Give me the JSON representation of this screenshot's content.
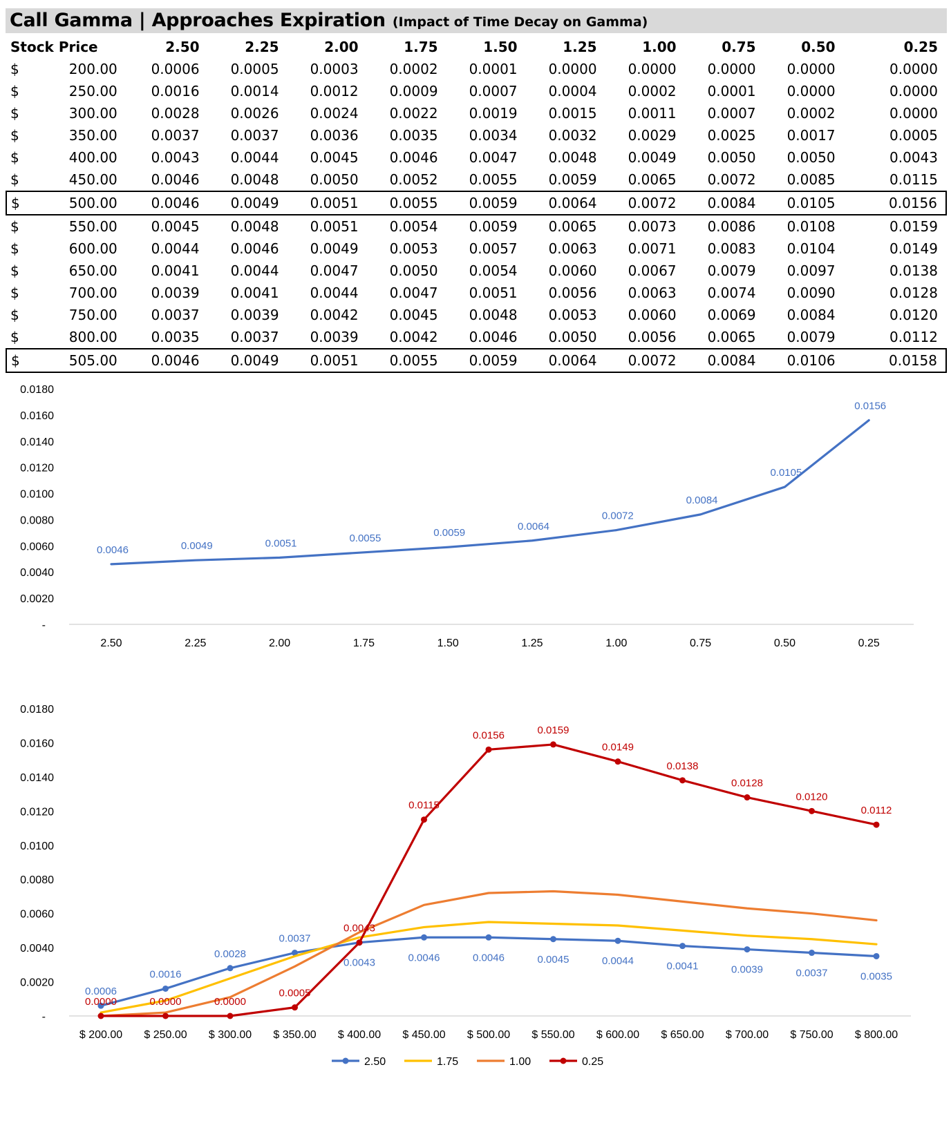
{
  "title": "Call Gamma | Approaches Expiration",
  "subtitle": "(Impact of Time Decay on Gamma)",
  "table": {
    "header_first": "Stock Price",
    "currency": "$",
    "columns": [
      "2.50",
      "2.25",
      "2.00",
      "1.75",
      "1.50",
      "1.25",
      "1.00",
      "0.75",
      "0.50",
      "0.25"
    ],
    "rows": [
      {
        "price": "200.00",
        "values": [
          "0.0006",
          "0.0005",
          "0.0003",
          "0.0002",
          "0.0001",
          "0.0000",
          "0.0000",
          "0.0000",
          "0.0000",
          "0.0000"
        ],
        "highlight": false
      },
      {
        "price": "250.00",
        "values": [
          "0.0016",
          "0.0014",
          "0.0012",
          "0.0009",
          "0.0007",
          "0.0004",
          "0.0002",
          "0.0001",
          "0.0000",
          "0.0000"
        ],
        "highlight": false
      },
      {
        "price": "300.00",
        "values": [
          "0.0028",
          "0.0026",
          "0.0024",
          "0.0022",
          "0.0019",
          "0.0015",
          "0.0011",
          "0.0007",
          "0.0002",
          "0.0000"
        ],
        "highlight": false
      },
      {
        "price": "350.00",
        "values": [
          "0.0037",
          "0.0037",
          "0.0036",
          "0.0035",
          "0.0034",
          "0.0032",
          "0.0029",
          "0.0025",
          "0.0017",
          "0.0005"
        ],
        "highlight": false
      },
      {
        "price": "400.00",
        "values": [
          "0.0043",
          "0.0044",
          "0.0045",
          "0.0046",
          "0.0047",
          "0.0048",
          "0.0049",
          "0.0050",
          "0.0050",
          "0.0043"
        ],
        "highlight": false
      },
      {
        "price": "450.00",
        "values": [
          "0.0046",
          "0.0048",
          "0.0050",
          "0.0052",
          "0.0055",
          "0.0059",
          "0.0065",
          "0.0072",
          "0.0085",
          "0.0115"
        ],
        "highlight": false
      },
      {
        "price": "500.00",
        "values": [
          "0.0046",
          "0.0049",
          "0.0051",
          "0.0055",
          "0.0059",
          "0.0064",
          "0.0072",
          "0.0084",
          "0.0105",
          "0.0156"
        ],
        "highlight": true
      },
      {
        "price": "550.00",
        "values": [
          "0.0045",
          "0.0048",
          "0.0051",
          "0.0054",
          "0.0059",
          "0.0065",
          "0.0073",
          "0.0086",
          "0.0108",
          "0.0159"
        ],
        "highlight": false
      },
      {
        "price": "600.00",
        "values": [
          "0.0044",
          "0.0046",
          "0.0049",
          "0.0053",
          "0.0057",
          "0.0063",
          "0.0071",
          "0.0083",
          "0.0104",
          "0.0149"
        ],
        "highlight": false
      },
      {
        "price": "650.00",
        "values": [
          "0.0041",
          "0.0044",
          "0.0047",
          "0.0050",
          "0.0054",
          "0.0060",
          "0.0067",
          "0.0079",
          "0.0097",
          "0.0138"
        ],
        "highlight": false
      },
      {
        "price": "700.00",
        "values": [
          "0.0039",
          "0.0041",
          "0.0044",
          "0.0047",
          "0.0051",
          "0.0056",
          "0.0063",
          "0.0074",
          "0.0090",
          "0.0128"
        ],
        "highlight": false
      },
      {
        "price": "750.00",
        "values": [
          "0.0037",
          "0.0039",
          "0.0042",
          "0.0045",
          "0.0048",
          "0.0053",
          "0.0060",
          "0.0069",
          "0.0084",
          "0.0120"
        ],
        "highlight": false
      },
      {
        "price": "800.00",
        "values": [
          "0.0035",
          "0.0037",
          "0.0039",
          "0.0042",
          "0.0046",
          "0.0050",
          "0.0056",
          "0.0065",
          "0.0079",
          "0.0112"
        ],
        "highlight": false
      },
      {
        "price": "505.00",
        "values": [
          "0.0046",
          "0.0049",
          "0.0051",
          "0.0055",
          "0.0059",
          "0.0064",
          "0.0072",
          "0.0084",
          "0.0106",
          "0.0158"
        ],
        "highlight": true
      }
    ]
  },
  "chart_data": [
    {
      "type": "line",
      "categories": [
        "2.50",
        "2.25",
        "2.00",
        "1.75",
        "1.50",
        "1.25",
        "1.00",
        "0.75",
        "0.50",
        "0.25"
      ],
      "series": [
        {
          "values": [
            0.0046,
            0.0049,
            0.0051,
            0.0055,
            0.0059,
            0.0064,
            0.0072,
            0.0084,
            0.0105,
            0.0156
          ],
          "color": "#4472c4",
          "labels": [
            "0.0046",
            "0.0049",
            "0.0051",
            "0.0055",
            "0.0059",
            "0.0064",
            "0.0072",
            "0.0084",
            "0.0105",
            "0.0156"
          ]
        }
      ],
      "ylim": [
        0,
        0.018
      ],
      "yticks": [
        "-",
        "0.0020",
        "0.0040",
        "0.0060",
        "0.0080",
        "0.0100",
        "0.0120",
        "0.0140",
        "0.0160",
        "0.0180"
      ],
      "grid": false,
      "markers": true
    },
    {
      "type": "line",
      "categories": [
        "$ 200.00",
        "$ 250.00",
        "$ 300.00",
        "$ 350.00",
        "$ 400.00",
        "$ 450.00",
        "$ 500.00",
        "$ 550.00",
        "$ 600.00",
        "$ 650.00",
        "$ 700.00",
        "$ 750.00",
        "$ 800.00"
      ],
      "series": [
        {
          "name": "2.50",
          "color": "#4472c4",
          "markers": true,
          "values": [
            0.0006,
            0.0016,
            0.0028,
            0.0037,
            0.0043,
            0.0046,
            0.0046,
            0.0045,
            0.0044,
            0.0041,
            0.0039,
            0.0037,
            0.0035
          ],
          "labels": [
            "0.0006",
            "0.0016",
            "0.0028",
            "0.0037",
            "0.0043",
            "0.0046",
            "0.0046",
            "0.0045",
            "0.0044",
            "0.0041",
            "0.0039",
            "0.0037",
            "0.0035"
          ],
          "label_below": [
            false,
            false,
            false,
            false,
            true,
            true,
            true,
            true,
            true,
            true,
            true,
            true,
            true
          ]
        },
        {
          "name": "1.75",
          "color": "#ffc000",
          "markers": false,
          "values": [
            0.0002,
            0.0009,
            0.0022,
            0.0035,
            0.0046,
            0.0052,
            0.0055,
            0.0054,
            0.0053,
            0.005,
            0.0047,
            0.0045,
            0.0042
          ]
        },
        {
          "name": "1.00",
          "color": "#ed7d31",
          "markers": false,
          "values": [
            0.0,
            0.0002,
            0.0011,
            0.0029,
            0.0049,
            0.0065,
            0.0072,
            0.0073,
            0.0071,
            0.0067,
            0.0063,
            0.006,
            0.0056
          ]
        },
        {
          "name": "0.25",
          "color": "#c00000",
          "markers": true,
          "values": [
            0.0,
            0.0,
            0.0,
            0.0005,
            0.0043,
            0.0115,
            0.0156,
            0.0159,
            0.0149,
            0.0138,
            0.0128,
            0.012,
            0.0112
          ],
          "labels": [
            "0.0000",
            "0.0000",
            "0.0000",
            "0.0005",
            "0.0043",
            "0.0115",
            "0.0156",
            "0.0159",
            "0.0149",
            "0.0138",
            "0.0128",
            "0.0120",
            "0.0112"
          ]
        }
      ],
      "ylim": [
        0,
        0.018
      ],
      "yticks": [
        "-",
        "0.0020",
        "0.0040",
        "0.0060",
        "0.0080",
        "0.0100",
        "0.0120",
        "0.0140",
        "0.0160",
        "0.0180"
      ],
      "legend": "bottom",
      "grid": false
    }
  ]
}
